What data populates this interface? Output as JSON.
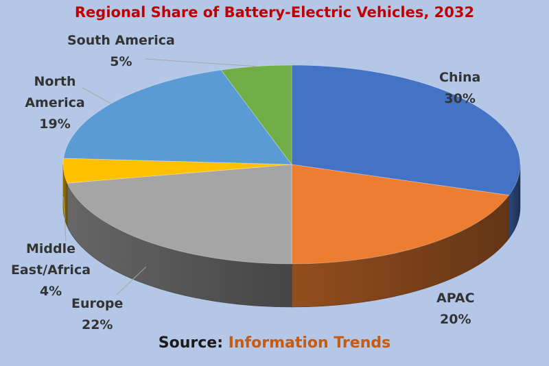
{
  "chart_data": {
    "type": "pie",
    "title": "Regional Share of Battery-Electric Vehicles, 2032",
    "slices": [
      {
        "label": "China",
        "value": 30,
        "value_label": "30%",
        "color": "#4472c4"
      },
      {
        "label": "APAC",
        "value": 20,
        "value_label": "20%",
        "color": "#ed7d31"
      },
      {
        "label": "Europe",
        "value": 22,
        "value_label": "22%",
        "color": "#a5a5a5"
      },
      {
        "label": "Middle East/Africa",
        "value": 4,
        "value_label": "4%",
        "color": "#ffc000"
      },
      {
        "label": "North America",
        "value": 19,
        "value_label": "19%",
        "color": "#5b9bd5"
      },
      {
        "label": "South America",
        "value": 5,
        "value_label": "5%",
        "color": "#70ad47"
      }
    ],
    "style": "3d"
  },
  "source": {
    "prefix": "Source:",
    "name": "Information Trends"
  },
  "colors": {
    "background": "#b4c7e7",
    "title": "#c00000",
    "source_name": "#c55a11"
  }
}
